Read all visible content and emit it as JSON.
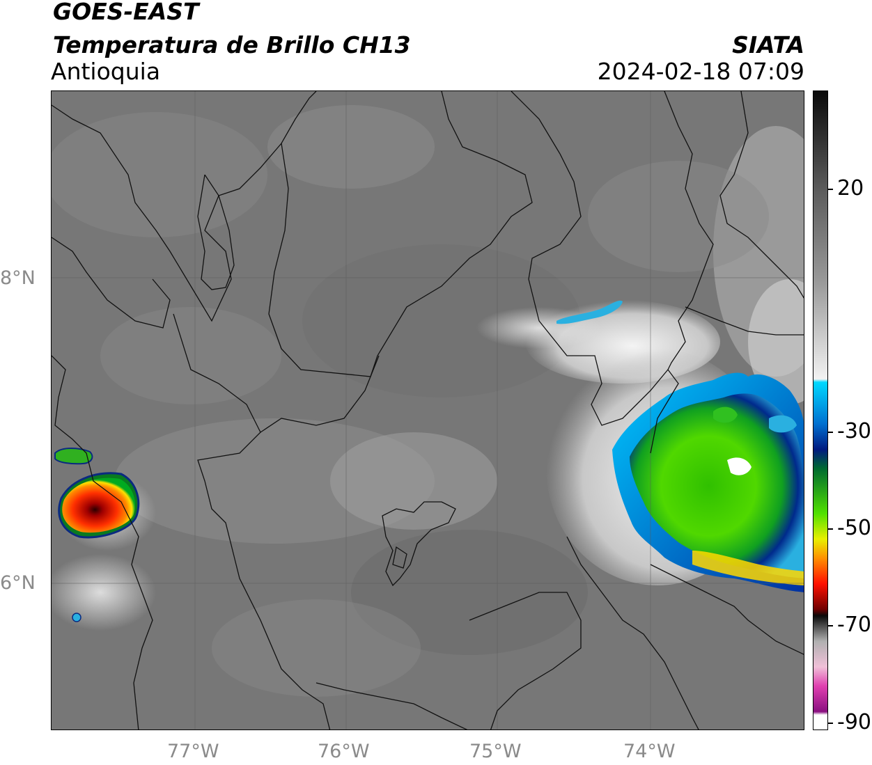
{
  "header": {
    "line1": "GOES-EAST",
    "line2": "Temperatura de Brillo CH13",
    "line3": "Antioquia",
    "org": "SIATA",
    "datetime": "2024-02-18 07:09"
  },
  "map": {
    "lon_labels": [
      "77°W",
      "76°W",
      "75°W",
      "74°W"
    ],
    "lat_labels": [
      "8°N",
      "6°N"
    ]
  },
  "colorbar": {
    "labels": [
      "20",
      "-30",
      "-50",
      "-70",
      "-90"
    ]
  }
}
